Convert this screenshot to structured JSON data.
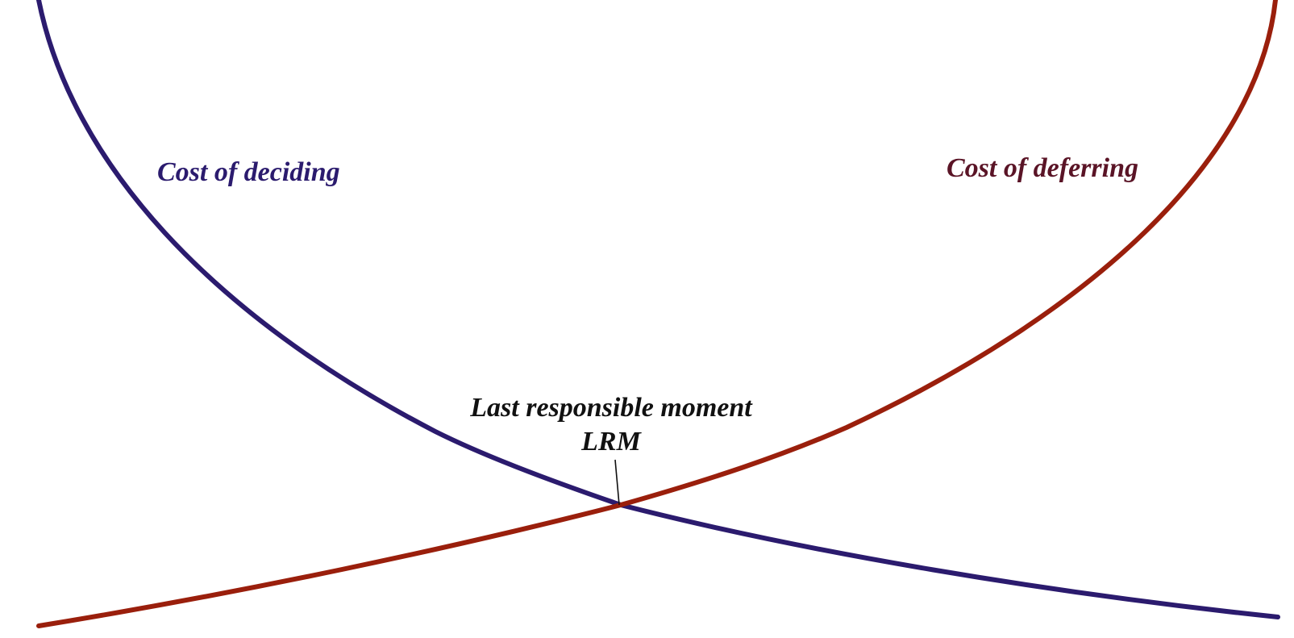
{
  "diagram": {
    "cost_of_deciding": {
      "label": "Cost of deciding",
      "curve_color": "#2b1b6e",
      "label_color": "#2b1b6e"
    },
    "cost_of_deferring": {
      "label": "Cost of deferring",
      "curve_color": "#9a1f0c",
      "label_color": "#5a1426"
    },
    "intersection": {
      "title": "Last responsible moment",
      "abbreviation": "LRM"
    }
  }
}
